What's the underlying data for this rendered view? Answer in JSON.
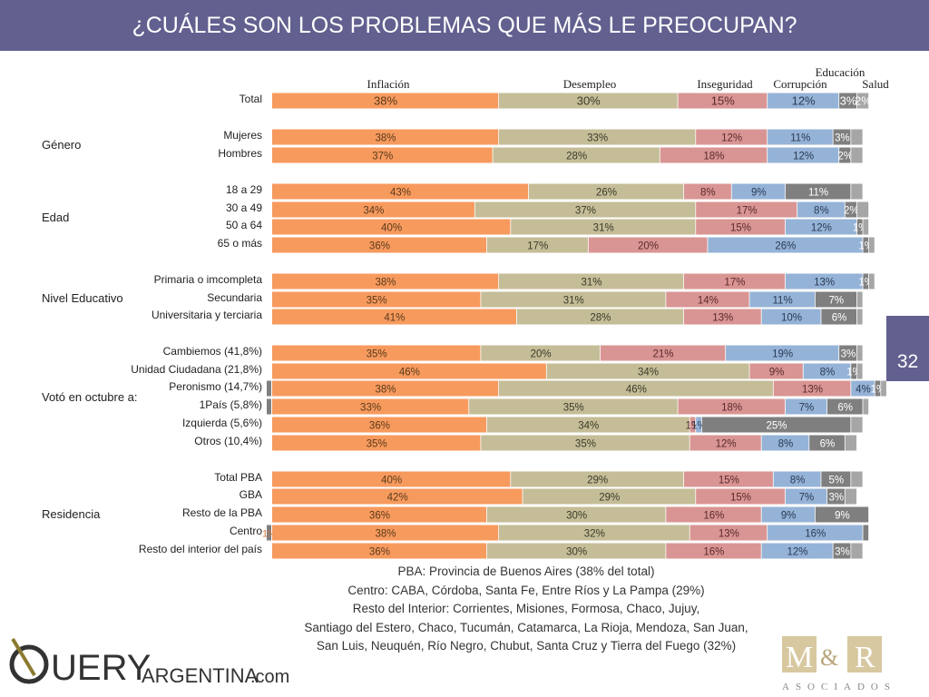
{
  "title": "¿CUÁLES SON LOS PROBLEMAS QUE MÁS LE PREOCUPAN?",
  "page_number": "32",
  "chart_data": {
    "type": "bar",
    "orientation": "horizontal",
    "stacked": true,
    "series": [
      {
        "name": "Inflación",
        "color": "#f79a5e",
        "values": [
          38,
          38,
          37,
          43,
          34,
          40,
          36,
          38,
          35,
          41,
          35,
          46,
          38,
          33,
          36,
          35,
          40,
          42,
          36,
          38,
          36
        ]
      },
      {
        "name": "Desempleo",
        "color": "#c4bd97",
        "values": [
          30,
          33,
          28,
          26,
          37,
          31,
          17,
          31,
          31,
          28,
          20,
          34,
          46,
          35,
          34,
          35,
          29,
          29,
          30,
          32,
          30
        ]
      },
      {
        "name": "Inseguridad",
        "color": "#d99593",
        "values": [
          15,
          12,
          18,
          8,
          17,
          15,
          20,
          17,
          14,
          13,
          21,
          9,
          13,
          18,
          1,
          12,
          15,
          15,
          16,
          13,
          16
        ]
      },
      {
        "name": "Corrupción",
        "color": "#95b3d7",
        "values": [
          12,
          11,
          12,
          9,
          8,
          12,
          26,
          13,
          11,
          10,
          19,
          8,
          4,
          7,
          1,
          8,
          8,
          7,
          9,
          16,
          12
        ]
      },
      {
        "name": "Educación",
        "color": "#7f7f7f",
        "values": [
          3,
          3,
          2,
          11,
          2,
          1,
          1,
          1,
          7,
          6,
          3,
          1,
          1,
          6,
          25,
          6,
          5,
          3,
          9,
          1,
          3
        ]
      },
      {
        "name": "Salud",
        "color": "#a6a6a6",
        "values": [
          2,
          2,
          2,
          2,
          2,
          1,
          1,
          1,
          1,
          1,
          1,
          1,
          1,
          1,
          2,
          2,
          2,
          2,
          0,
          0,
          2
        ]
      }
    ],
    "categories": [
      "Total",
      "Mujeres",
      "Hombres",
      "18 a 29",
      "30 a 49",
      "50 a 64",
      "65 o más",
      "Primaria o imcompleta",
      "Secundaria",
      "Universitaria y terciaria",
      "Cambiemos (41,8%)",
      "Unidad Ciudadana (21,8%)",
      "Peronismo (14,7%)",
      "1País (5,8%)",
      "Izquierda (5,6%)",
      "Otros (10,4%)",
      "Total PBA",
      "GBA",
      "Resto de la PBA",
      "Centro",
      "Resto del interior del país"
    ],
    "data_labels": [
      [
        "38%",
        "30%",
        "15%",
        "12%",
        "3%",
        "2%"
      ],
      [
        "38%",
        "33%",
        "12%",
        "11%",
        "3%",
        ""
      ],
      [
        "37%",
        "28%",
        "18%",
        "12%",
        "2%",
        ""
      ],
      [
        "43%",
        "26%",
        "8%",
        "9%",
        "11%",
        ""
      ],
      [
        "34%",
        "37%",
        "17%",
        "8%",
        "2%",
        ""
      ],
      [
        "40%",
        "31%",
        "15%",
        "12%",
        "1%",
        ""
      ],
      [
        "36%",
        "17%",
        "20%",
        "26%",
        "1%",
        ""
      ],
      [
        "38%",
        "31%",
        "17%",
        "13%",
        "1%",
        ""
      ],
      [
        "35%",
        "31%",
        "14%",
        "11%",
        "7%",
        ""
      ],
      [
        "41%",
        "28%",
        "13%",
        "10%",
        "6%",
        ""
      ],
      [
        "35%",
        "20%",
        "21%",
        "19%",
        "3%",
        ""
      ],
      [
        "46%",
        "34%",
        "9%",
        "8%",
        "1%",
        ""
      ],
      [
        "38%",
        "46%",
        "13%",
        "4%",
        "1%",
        ""
      ],
      [
        "33%",
        "35%",
        "18%",
        "7%",
        "6%",
        ""
      ],
      [
        "36%",
        "34%",
        "1%",
        "1%",
        "25%",
        ""
      ],
      [
        "35%",
        "35%",
        "12%",
        "8%",
        "6%",
        ""
      ],
      [
        "40%",
        "29%",
        "15%",
        "8%",
        "5%",
        ""
      ],
      [
        "42%",
        "29%",
        "15%",
        "7%",
        "3%",
        ""
      ],
      [
        "36%",
        "30%",
        "16%",
        "9%",
        "9%",
        ""
      ],
      [
        "38%",
        "32%",
        "13%",
        "16%",
        "",
        ""
      ],
      [
        "36%",
        "30%",
        "16%",
        "12%",
        "3%",
        ""
      ]
    ],
    "leading_marks": [
      {
        "row": 12,
        "label": ""
      },
      {
        "row": 13,
        "label": ""
      },
      {
        "row": 19,
        "label": "1%"
      }
    ],
    "groups": [
      {
        "label": "Género",
        "rows": [
          1,
          2
        ]
      },
      {
        "label": "Edad",
        "rows": [
          3,
          4,
          5,
          6
        ]
      },
      {
        "label": "Nivel Educativo",
        "rows": [
          7,
          8,
          9
        ]
      },
      {
        "label": "Votó en octubre a:",
        "rows": [
          10,
          11,
          12,
          13,
          14,
          15
        ]
      },
      {
        "label": "Residencia",
        "rows": [
          16,
          17,
          18,
          19,
          20
        ]
      }
    ],
    "xlim": [
      0,
      100
    ]
  },
  "footnotes": [
    "PBA: Provincia de Buenos Aires (38% del total)",
    "Centro: CABA, Córdoba, Santa Fe, Entre Ríos y La Pampa (29%)",
    "Resto del Interior: Corrientes, Misiones, Formosa, Chaco, Jujuy,",
    "Santiago del Estero, Chaco, Tucumán, Catamarca, La Rioja, Mendoza, San Juan,",
    "San Luis, Neuquén, Río Negro, Chubut, Santa Cruz y Tierra del Fuego (32%)"
  ],
  "logos": {
    "query": "QUERY ARGENTINA.com",
    "mr": "M&R ASOCIADOS"
  }
}
